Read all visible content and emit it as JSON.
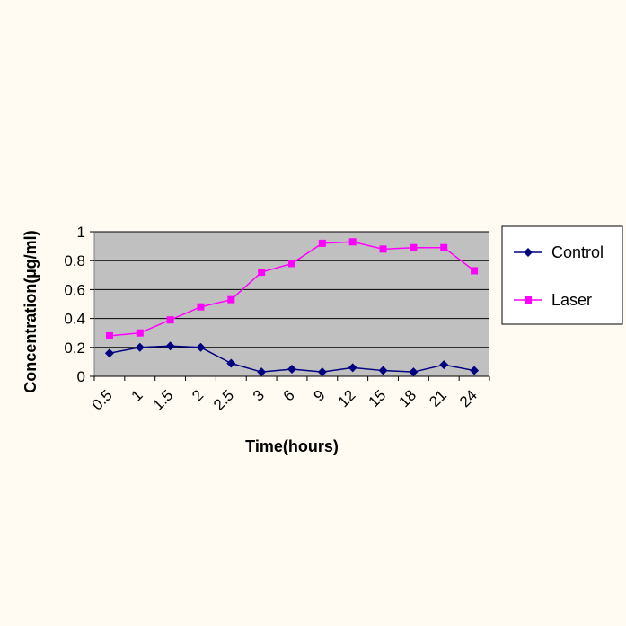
{
  "chart_data": {
    "type": "line",
    "title": "",
    "xlabel": "Time(hours)",
    "ylabel": "Concentration(µg/ml)",
    "categories": [
      "0.5",
      "1",
      "1.5",
      "2",
      "2.5",
      "3",
      "6",
      "9",
      "12",
      "15",
      "18",
      "21",
      "24"
    ],
    "ylim": [
      0,
      1
    ],
    "yticks": [
      "0",
      "0.2",
      "0.4",
      "0.6",
      "0.8",
      "1"
    ],
    "grid": true,
    "legend_position": "right",
    "series": [
      {
        "name": "Control",
        "color": "#000080",
        "marker": "diamond",
        "values": [
          0.16,
          0.2,
          0.21,
          0.2,
          0.09,
          0.03,
          0.05,
          0.03,
          0.06,
          0.04,
          0.03,
          0.08,
          0.04
        ]
      },
      {
        "name": "Laser",
        "color": "#ff00ff",
        "marker": "square",
        "values": [
          0.28,
          0.3,
          0.39,
          0.48,
          0.53,
          0.72,
          0.78,
          0.92,
          0.93,
          0.88,
          0.89,
          0.89,
          0.73
        ]
      }
    ],
    "plot_background": "#c0c0c0"
  }
}
